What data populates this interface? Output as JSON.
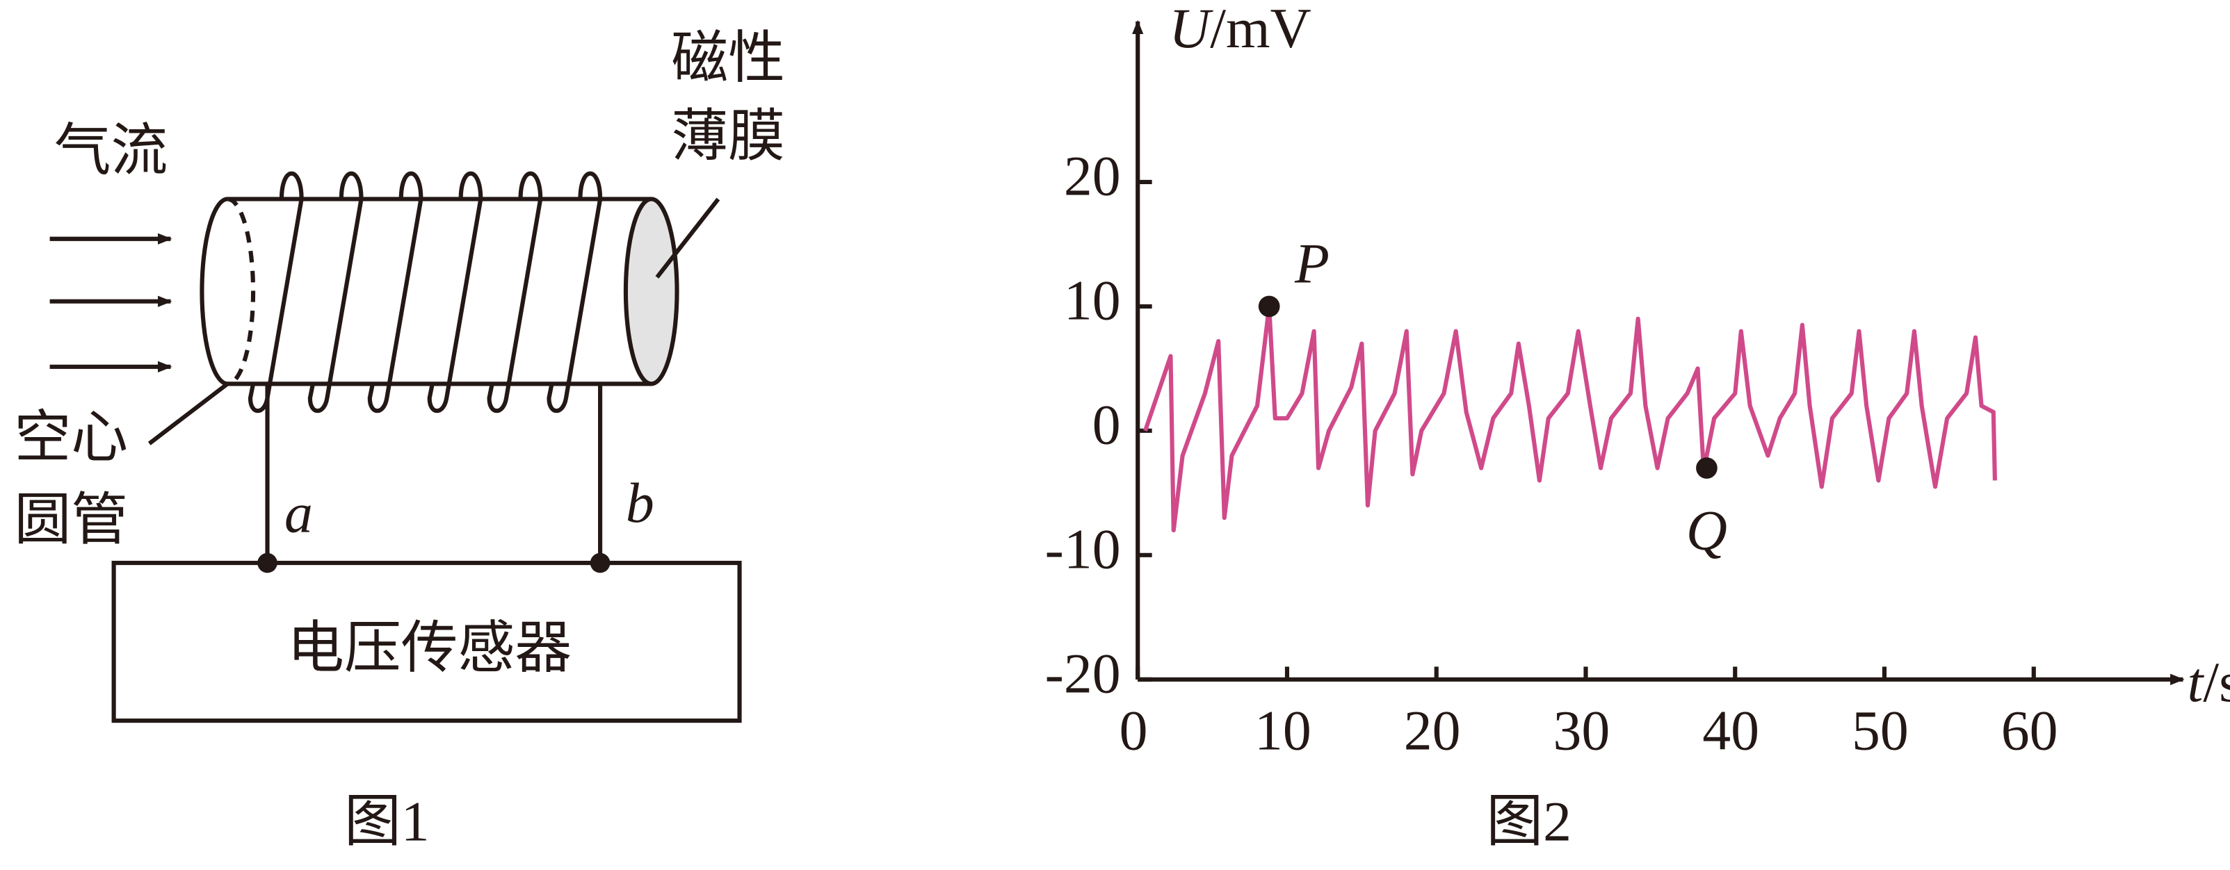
{
  "figure1": {
    "caption": "图1",
    "labels": {
      "airflow": "气流",
      "film": [
        "磁性",
        "薄膜"
      ],
      "tube": [
        "空心",
        "圆管"
      ],
      "terminal_a": "a",
      "terminal_b": "b",
      "sensor": "电压传感器"
    }
  },
  "chart_data": {
    "type": "line",
    "caption": "图2",
    "y_label": {
      "symbol": "U",
      "unit": "/mV"
    },
    "x_label": {
      "symbol": "t",
      "unit": "/s"
    },
    "xlim": [
      0,
      70
    ],
    "ylim": [
      -20,
      32
    ],
    "xticks": [
      0,
      10,
      20,
      30,
      40,
      50,
      60
    ],
    "yticks": [
      -20,
      -10,
      0,
      10,
      20
    ],
    "x": [
      0.5,
      2.2,
      2.4,
      3.0,
      4.5,
      5.4,
      5.8,
      6.3,
      8.0,
      8.8,
      9.2,
      10.0,
      11.0,
      11.8,
      12.1,
      12.8,
      14.3,
      15.0,
      15.4,
      15.9,
      17.2,
      18.0,
      18.4,
      19.0,
      20.5,
      21.3,
      22.0,
      23.0,
      23.8,
      25.0,
      25.5,
      26.2,
      26.9,
      27.5,
      28.8,
      29.5,
      30.3,
      31.0,
      31.7,
      33.0,
      33.5,
      34.0,
      34.8,
      35.5,
      36.8,
      37.5,
      37.9,
      38.6,
      40.0,
      40.4,
      41.0,
      42.2,
      43.0,
      44.0,
      44.5,
      45.0,
      45.8,
      46.5,
      47.8,
      48.3,
      48.8,
      49.6,
      50.3,
      51.5,
      52.0,
      52.5,
      53.4,
      54.2,
      55.5,
      56.1,
      56.5,
      57.3,
      57.4
    ],
    "series": [
      {
        "color": "#d04a8a",
        "values": [
          0,
          6,
          -8,
          -2,
          3,
          7.2,
          -7,
          -2,
          2,
          10,
          1,
          1,
          3,
          8,
          -3,
          0,
          3.5,
          7,
          -6,
          0,
          3,
          8,
          -3.5,
          0,
          3,
          8,
          1.5,
          -3,
          1,
          3,
          7,
          2,
          -4,
          1,
          3,
          8,
          2,
          -3,
          1,
          3,
          9,
          2,
          -3,
          1,
          3,
          5,
          -3.2,
          1,
          3,
          8,
          2,
          -2,
          1,
          3,
          8.5,
          2,
          -4.5,
          1,
          3,
          8,
          2,
          -4,
          1,
          3,
          8,
          2,
          -4.5,
          1,
          3,
          7.5,
          2,
          1.5,
          -4
        ]
      }
    ],
    "points": [
      {
        "label": "P",
        "x": 8.8,
        "y": 10
      },
      {
        "label": "Q",
        "x": 38.1,
        "y": -3
      }
    ]
  }
}
